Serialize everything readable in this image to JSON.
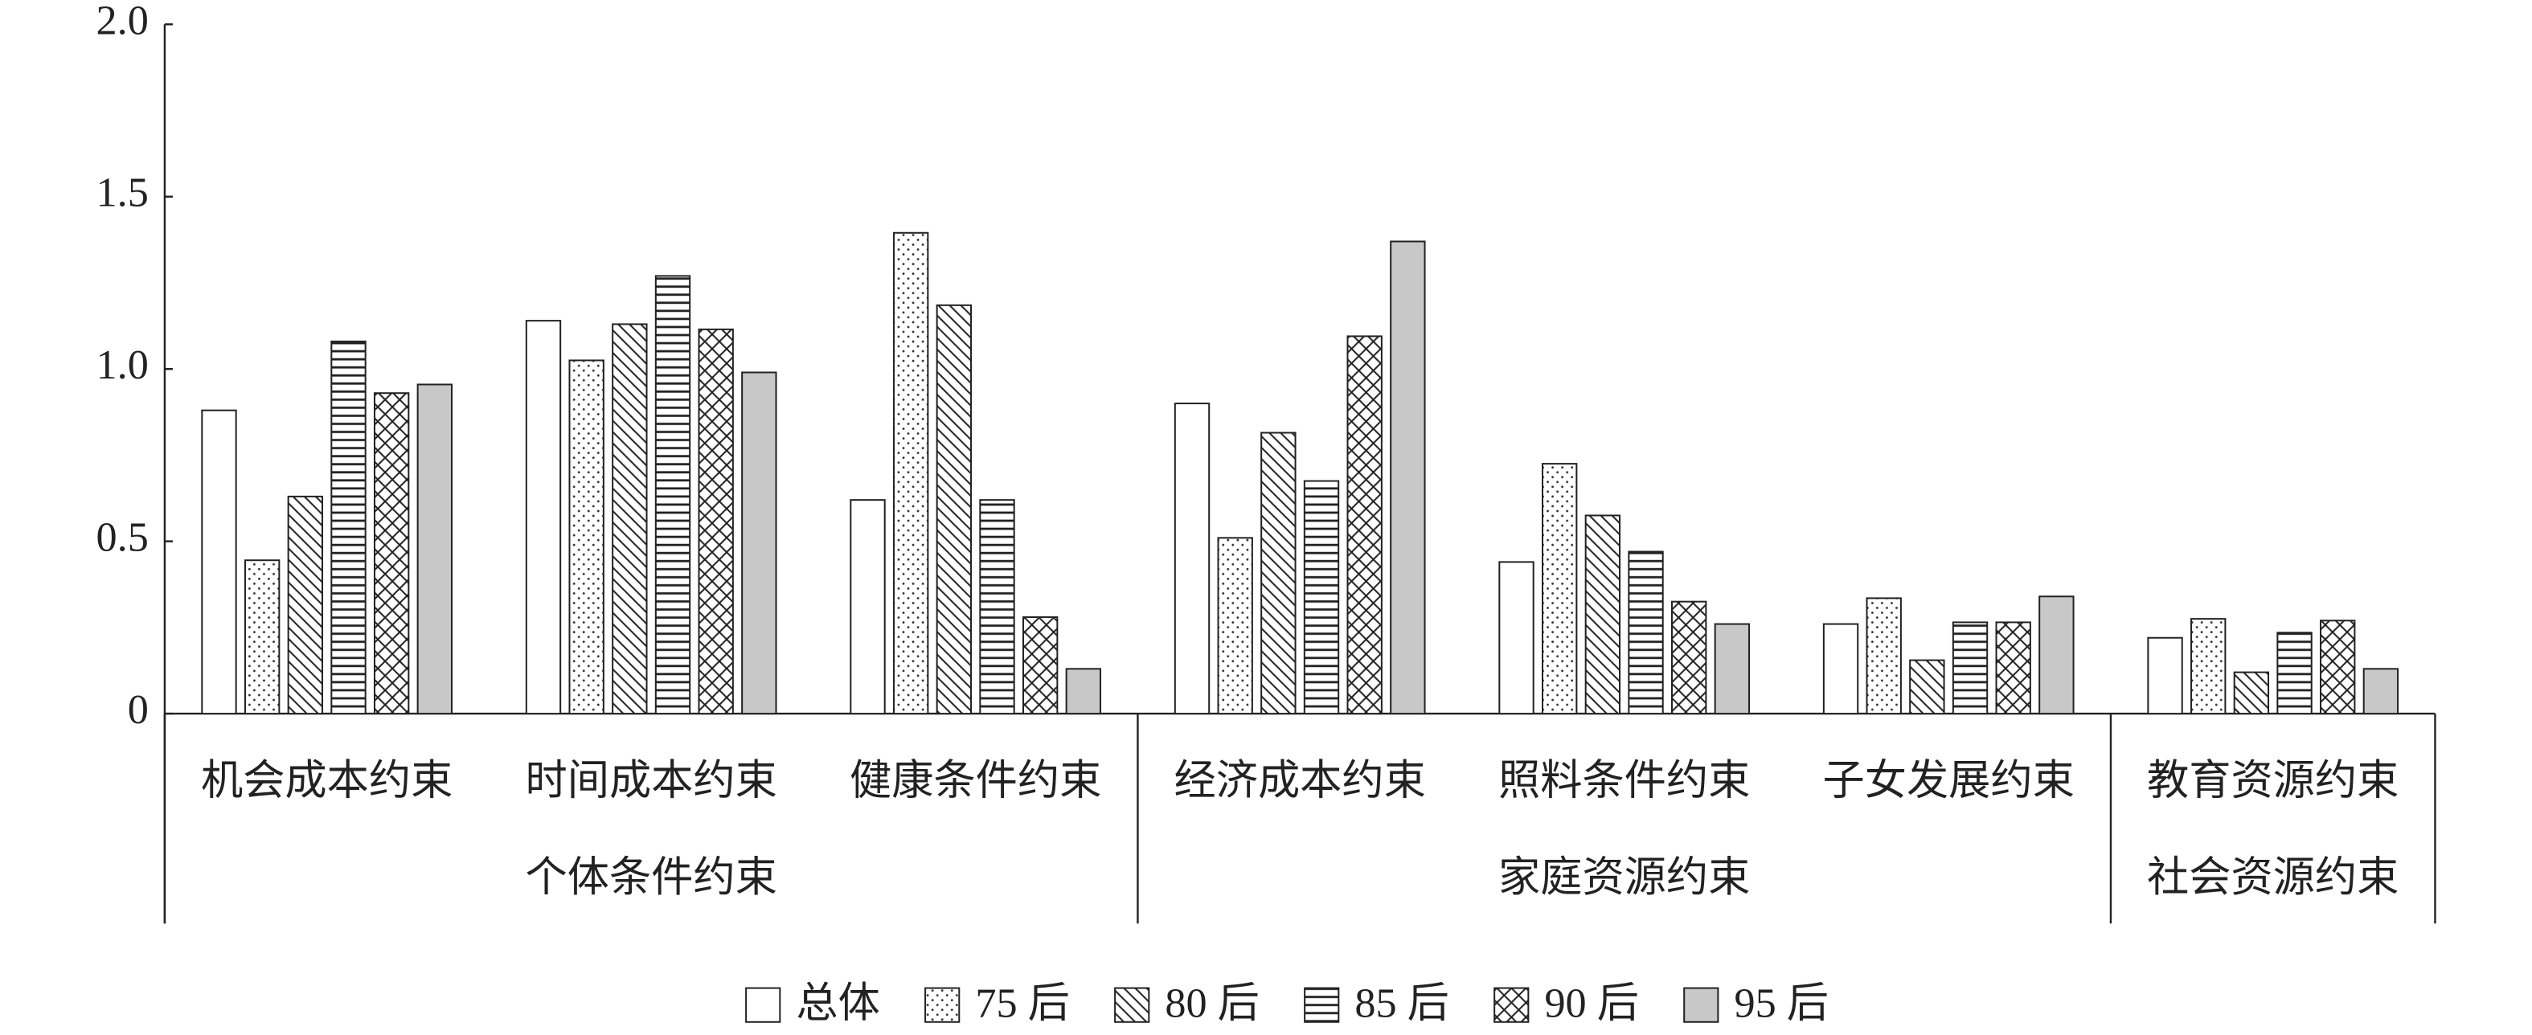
{
  "chart_data": {
    "type": "bar",
    "groups": [
      {
        "name": "个体条件约束",
        "categories": [
          "机会成本约束",
          "时间成本约束",
          "健康条件约束"
        ]
      },
      {
        "name": "家庭资源约束",
        "categories": [
          "经济成本约束",
          "照料条件约束",
          "子女发展约束"
        ]
      },
      {
        "name": "社会资源约束",
        "categories": [
          "教育资源约束"
        ]
      }
    ],
    "series": [
      {
        "name": "总体",
        "color": "#ffffff",
        "pattern": "solid",
        "values": [
          0.88,
          1.14,
          0.62,
          0.9,
          0.44,
          0.26,
          0.22
        ]
      },
      {
        "name": "75 后",
        "color": "#ffffff",
        "pattern": "dots",
        "values": [
          0.445,
          1.025,
          1.395,
          0.51,
          0.725,
          0.335,
          0.275
        ]
      },
      {
        "name": "80 后",
        "color": "#ffffff",
        "pattern": "diagonal",
        "values": [
          0.63,
          1.13,
          1.185,
          0.815,
          0.575,
          0.155,
          0.12
        ]
      },
      {
        "name": "85 后",
        "color": "#ffffff",
        "pattern": "horizontal",
        "values": [
          1.08,
          1.27,
          0.62,
          0.675,
          0.47,
          0.265,
          0.235
        ]
      },
      {
        "name": "90 后",
        "color": "#ffffff",
        "pattern": "crosshatch",
        "values": [
          0.93,
          1.115,
          0.28,
          1.095,
          0.325,
          0.265,
          0.27
        ]
      },
      {
        "name": "95 后",
        "color": "#c8c8c8",
        "pattern": "solid",
        "values": [
          0.955,
          0.99,
          0.13,
          1.37,
          0.26,
          0.34,
          0.13
        ]
      }
    ],
    "ylim": [
      0,
      2
    ],
    "yticks": [
      0,
      0.5,
      {
        "value": 1,
        "label": "1.0"
      },
      1.5,
      {
        "value": 2,
        "label": "2.0"
      }
    ],
    "grid": false,
    "legend": "bottom"
  }
}
